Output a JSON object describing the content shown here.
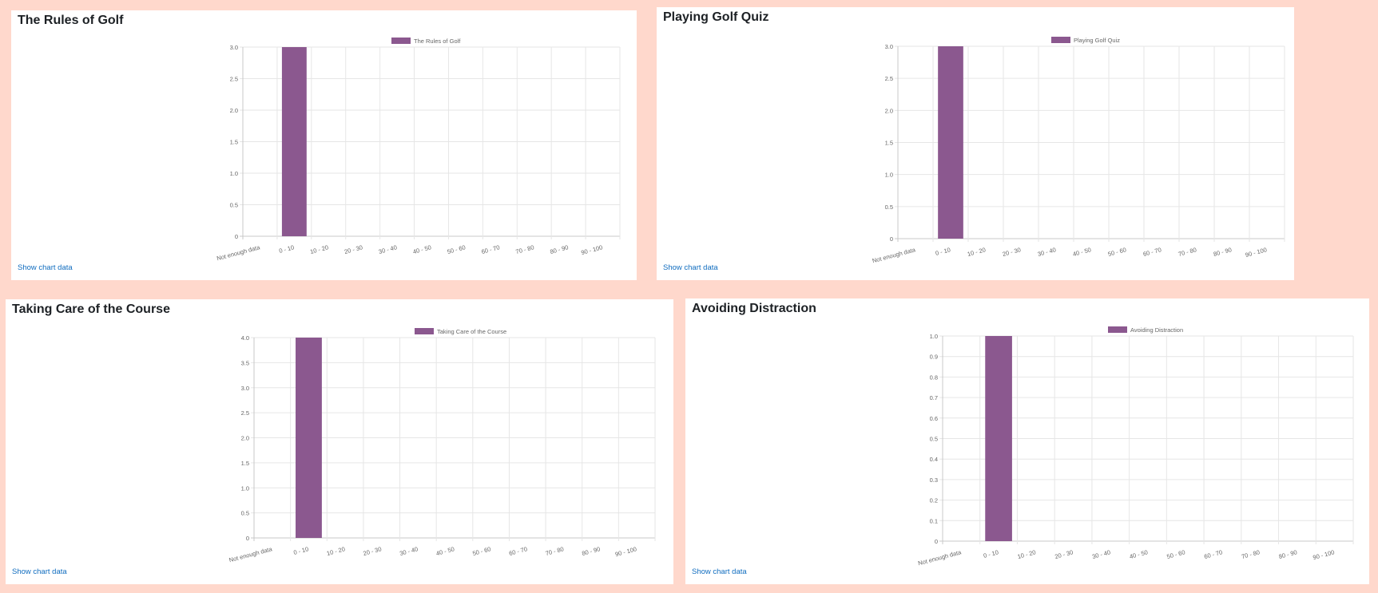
{
  "colors": {
    "bar": "#8b588f",
    "grid": "#e6e6e6",
    "axis": "#c8c8c8",
    "tick_text": "#666666",
    "title": "#1d2125",
    "link": "#0f6cbf",
    "background": "#ffd8cc"
  },
  "cards": [
    {
      "title": "The Rules of Golf",
      "link_label": "Show chart data"
    },
    {
      "title": "Playing Golf Quiz",
      "link_label": "Show chart data"
    },
    {
      "title": "Taking Care of the Course",
      "link_label": "Show chart data"
    },
    {
      "title": "Avoiding Distraction",
      "link_label": "Show chart data"
    }
  ],
  "chart_data": [
    {
      "type": "bar",
      "categories": [
        "Not enough data",
        "0 - 10",
        "10 - 20",
        "20 - 30",
        "30 - 40",
        "40 - 50",
        "50 - 60",
        "60 - 70",
        "70 - 80",
        "80 - 90",
        "90 - 100"
      ],
      "series": [
        {
          "name": "The Rules of Golf",
          "values": [
            0,
            3,
            0,
            0,
            0,
            0,
            0,
            0,
            0,
            0,
            0
          ]
        }
      ],
      "ylim": [
        0,
        3.0
      ],
      "yticks": [
        "0",
        "0.5",
        "1.0",
        "1.5",
        "2.0",
        "2.5",
        "3.0"
      ],
      "grid": true,
      "legend": "top"
    },
    {
      "type": "bar",
      "categories": [
        "Not enough data",
        "0 - 10",
        "10 - 20",
        "20 - 30",
        "30 - 40",
        "40 - 50",
        "50 - 60",
        "60 - 70",
        "70 - 80",
        "80 - 90",
        "90 - 100"
      ],
      "series": [
        {
          "name": "Playing Golf Quiz",
          "values": [
            0,
            3,
            0,
            0,
            0,
            0,
            0,
            0,
            0,
            0,
            0
          ]
        }
      ],
      "ylim": [
        0,
        3.0
      ],
      "yticks": [
        "0",
        "0.5",
        "1.0",
        "1.5",
        "2.0",
        "2.5",
        "3.0"
      ],
      "grid": true,
      "legend": "top"
    },
    {
      "type": "bar",
      "categories": [
        "Not enough data",
        "0 - 10",
        "10 - 20",
        "20 - 30",
        "30 - 40",
        "40 - 50",
        "50 - 60",
        "60 - 70",
        "70 - 80",
        "80 - 90",
        "90 - 100"
      ],
      "series": [
        {
          "name": "Taking Care of the Course",
          "values": [
            0,
            4,
            0,
            0,
            0,
            0,
            0,
            0,
            0,
            0,
            0
          ]
        }
      ],
      "ylim": [
        0,
        4.0
      ],
      "yticks": [
        "0",
        "0.5",
        "1.0",
        "1.5",
        "2.0",
        "2.5",
        "3.0",
        "3.5",
        "4.0"
      ],
      "grid": true,
      "legend": "top"
    },
    {
      "type": "bar",
      "categories": [
        "Not enough data",
        "0 - 10",
        "10 - 20",
        "20 - 30",
        "30 - 40",
        "40 - 50",
        "50 - 60",
        "60 - 70",
        "70 - 80",
        "80 - 90",
        "90 - 100"
      ],
      "series": [
        {
          "name": "Avoiding Distraction",
          "values": [
            0,
            1,
            0,
            0,
            0,
            0,
            0,
            0,
            0,
            0,
            0
          ]
        }
      ],
      "ylim": [
        0,
        1.0
      ],
      "yticks": [
        "0",
        "0.1",
        "0.2",
        "0.3",
        "0.4",
        "0.5",
        "0.6",
        "0.7",
        "0.8",
        "0.9",
        "1.0"
      ],
      "grid": true,
      "legend": "top"
    }
  ]
}
